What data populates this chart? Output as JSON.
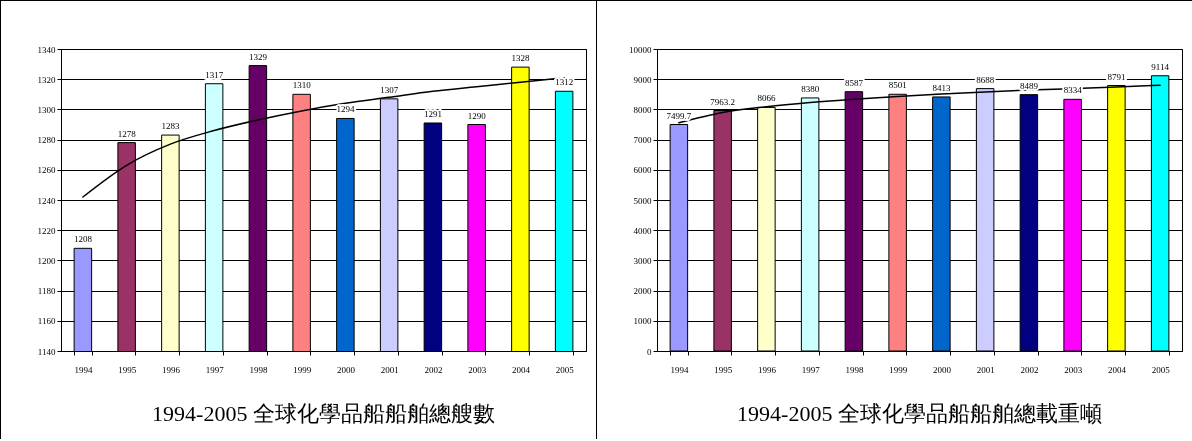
{
  "chart_data": [
    {
      "type": "bar",
      "title": "1994-2005 全球化學品船船舶總艘數",
      "categories": [
        "1994",
        "1995",
        "1996",
        "1997",
        "1998",
        "1999",
        "2000",
        "2001",
        "2002",
        "2003",
        "2004",
        "2005"
      ],
      "ylim": [
        1140,
        1340
      ],
      "yticks": [
        1140,
        1160,
        1180,
        1200,
        1220,
        1240,
        1260,
        1280,
        1300,
        1320,
        1340
      ],
      "grid": "y",
      "series": [
        {
          "values": [
            1208,
            1278,
            1283,
            1317,
            1329,
            1310,
            1294,
            1307,
            1291,
            1290,
            1328,
            1312
          ],
          "value_labels": [
            "1208",
            "1278",
            "1283",
            "1317",
            "1329",
            "1310",
            "1294",
            "1307",
            "1291",
            "1290",
            "1328",
            "1312"
          ],
          "colors": [
            "#9999ff",
            "#993366",
            "#ffffcc",
            "#ccffff",
            "#660066",
            "#ff8080",
            "#0066cc",
            "#ccccff",
            "#000080",
            "#ff00ff",
            "#ffff00",
            "#00ffff"
          ]
        },
        {
          "type": "line",
          "color": "#000000",
          "values": [
            1242,
            1263,
            1277,
            1286,
            1293,
            1299,
            1304,
            1308,
            1312,
            1315,
            1318,
            1321
          ]
        }
      ]
    },
    {
      "type": "bar",
      "title": "1994-2005 全球化學品船船舶總載重噸",
      "categories": [
        "1994",
        "1995",
        "1996",
        "1997",
        "1998",
        "1999",
        "2000",
        "2001",
        "2002",
        "2003",
        "2004",
        "2005"
      ],
      "ylim": [
        0,
        10000
      ],
      "yticks": [
        0,
        1000,
        2000,
        3000,
        4000,
        5000,
        6000,
        7000,
        8000,
        9000,
        10000
      ],
      "grid": "y",
      "series": [
        {
          "values": [
            7499.7,
            7963.2,
            8066,
            8380,
            8587,
            8501,
            8413,
            8688,
            8489,
            8334,
            8791,
            9114
          ],
          "value_labels": [
            "7499.7",
            "7963.2",
            "8066",
            "8380",
            "8587",
            "8501",
            "8413",
            "8688",
            "8489",
            "8334",
            "8791",
            "9114"
          ],
          "colors": [
            "#9999ff",
            "#993366",
            "#ffffcc",
            "#ccffff",
            "#660066",
            "#ff8080",
            "#0066cc",
            "#ccccff",
            "#000080",
            "#ff00ff",
            "#ffff00",
            "#00ffff"
          ]
        },
        {
          "type": "line",
          "color": "#000000",
          "values": [
            7560,
            7900,
            8090,
            8230,
            8340,
            8430,
            8510,
            8580,
            8640,
            8690,
            8740,
            8800
          ]
        }
      ]
    }
  ]
}
